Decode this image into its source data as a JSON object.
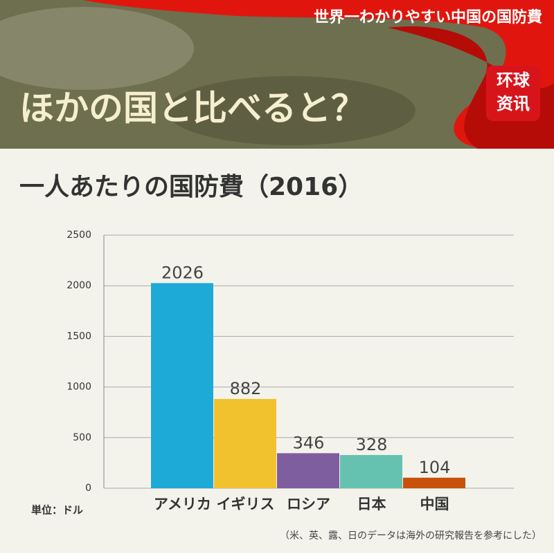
{
  "header": {
    "tagline": "世界一わかりやすい中国の国防費",
    "heading": "ほかの国と比べると？",
    "logo": [
      "环球",
      "资讯"
    ]
  },
  "chart_data": {
    "type": "bar",
    "title": "一人あたりの国防費（2016）",
    "categories": [
      "アメリカ",
      "イギリス",
      "ロシア",
      "日本",
      "中国"
    ],
    "values": [
      2026,
      882,
      346,
      328,
      104
    ],
    "colors": [
      "#1eaad6",
      "#f2c12e",
      "#7f5ea0",
      "#66c2b0",
      "#c9500a"
    ],
    "ylim": [
      0,
      2500
    ],
    "yticks": [
      0,
      500,
      1000,
      1500,
      2000,
      2500
    ],
    "grid": true,
    "unit_label": "単位：ドル",
    "note": "（米、英、露、日のデータは海外の研究報告を参考にした）"
  }
}
